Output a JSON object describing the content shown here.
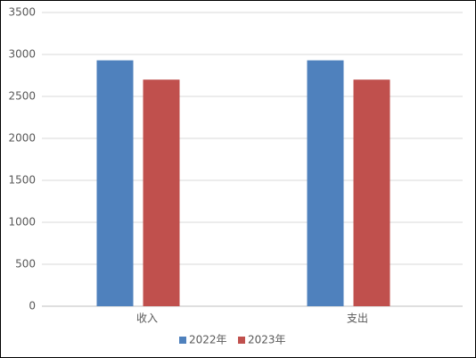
{
  "chart_data": {
    "type": "bar",
    "categories": [
      "收入",
      "支出"
    ],
    "series": [
      {
        "name": "2022年",
        "color": "#4f81bd",
        "values": [
          2930,
          2930
        ]
      },
      {
        "name": "2023年",
        "color": "#c0504d",
        "values": [
          2700,
          2700
        ]
      }
    ],
    "ylim": [
      0,
      3500
    ],
    "yticks": [
      0,
      500,
      1000,
      1500,
      2000,
      2500,
      3000,
      3500
    ],
    "grid": true,
    "legend": "bottom"
  }
}
